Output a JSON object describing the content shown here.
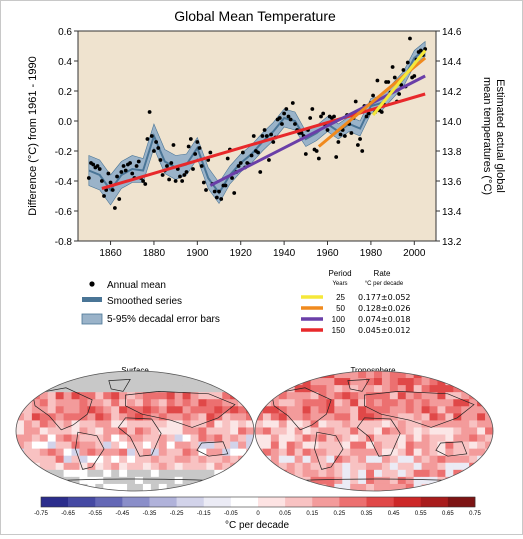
{
  "chart_data": [
    {
      "type": "scatter",
      "title": "Global Mean Temperature",
      "ylabel": "Difference (°C) from 1961 - 1990",
      "y2label_line1": "Estimated actual global",
      "y2label_line2": "mean temperatures (°C)",
      "xlim": [
        1845,
        2010
      ],
      "ylim": [
        -0.8,
        0.6
      ],
      "y2lim": [
        13.2,
        14.6
      ],
      "xticks": [
        "1860",
        "1880",
        "1900",
        "1920",
        "1940",
        "1960",
        "1980",
        "2000"
      ],
      "yticks": [
        "0.6",
        "0.4",
        "0.2",
        "0.0",
        "-0.2",
        "-0.4",
        "-0.6",
        "-0.8"
      ],
      "y2ticks": [
        "14.6",
        "14.4",
        "14.2",
        "14.0",
        "13.8",
        "13.6",
        "13.4",
        "13.2"
      ],
      "annual_mean": {
        "x": [
          1850,
          1851,
          1852,
          1853,
          1854,
          1855,
          1856,
          1857,
          1858,
          1859,
          1860,
          1861,
          1862,
          1863,
          1864,
          1865,
          1866,
          1867,
          1868,
          1869,
          1870,
          1871,
          1872,
          1873,
          1874,
          1875,
          1876,
          1877,
          1878,
          1879,
          1880,
          1881,
          1882,
          1883,
          1884,
          1885,
          1886,
          1887,
          1888,
          1889,
          1890,
          1891,
          1892,
          1893,
          1894,
          1895,
          1896,
          1897,
          1898,
          1899,
          1900,
          1901,
          1902,
          1903,
          1904,
          1905,
          1906,
          1907,
          1908,
          1909,
          1910,
          1911,
          1912,
          1913,
          1914,
          1915,
          1916,
          1917,
          1918,
          1919,
          1920,
          1921,
          1922,
          1923,
          1924,
          1925,
          1926,
          1927,
          1928,
          1929,
          1930,
          1931,
          1932,
          1933,
          1934,
          1935,
          1936,
          1937,
          1938,
          1939,
          1940,
          1941,
          1942,
          1943,
          1944,
          1945,
          1946,
          1947,
          1948,
          1949,
          1950,
          1951,
          1952,
          1953,
          1954,
          1955,
          1956,
          1957,
          1958,
          1959,
          1960,
          1961,
          1962,
          1963,
          1964,
          1965,
          1966,
          1967,
          1968,
          1969,
          1970,
          1971,
          1972,
          1973,
          1974,
          1975,
          1976,
          1977,
          1978,
          1979,
          1980,
          1981,
          1982,
          1983,
          1984,
          1985,
          1986,
          1987,
          1988,
          1989,
          1990,
          1991,
          1992,
          1993,
          1994,
          1995,
          1996,
          1997,
          1998,
          1999,
          2000,
          2001,
          2002,
          2003,
          2004,
          2005
        ],
        "y": [
          -0.38,
          -0.28,
          -0.29,
          -0.31,
          -0.3,
          -0.32,
          -0.4,
          -0.5,
          -0.46,
          -0.35,
          -0.41,
          -0.46,
          -0.58,
          -0.37,
          -0.52,
          -0.34,
          -0.3,
          -0.33,
          -0.29,
          -0.28,
          -0.35,
          -0.38,
          -0.3,
          -0.27,
          -0.38,
          -0.4,
          -0.42,
          -0.12,
          0.06,
          -0.1,
          -0.2,
          -0.14,
          -0.18,
          -0.26,
          -0.36,
          -0.33,
          -0.3,
          -0.39,
          -0.28,
          -0.16,
          -0.4,
          -0.32,
          -0.37,
          -0.4,
          -0.36,
          -0.34,
          -0.17,
          -0.12,
          -0.32,
          -0.22,
          -0.14,
          -0.18,
          -0.3,
          -0.41,
          -0.46,
          -0.26,
          -0.21,
          -0.42,
          -0.47,
          -0.51,
          -0.47,
          -0.52,
          -0.43,
          -0.43,
          -0.25,
          -0.19,
          -0.38,
          -0.48,
          -0.34,
          -0.3,
          -0.28,
          -0.21,
          -0.31,
          -0.28,
          -0.29,
          -0.23,
          -0.1,
          -0.2,
          -0.21,
          -0.34,
          -0.1,
          -0.06,
          -0.1,
          -0.26,
          -0.09,
          -0.14,
          -0.11,
          0.01,
          0.02,
          -0.02,
          0.05,
          0.08,
          0.03,
          0.01,
          0.12,
          -0.02,
          -0.06,
          -0.08,
          -0.08,
          -0.1,
          -0.22,
          -0.06,
          0.02,
          0.08,
          -0.19,
          -0.2,
          -0.25,
          0.03,
          0.05,
          -0.03,
          -0.06,
          0.03,
          0.02,
          0.03,
          -0.24,
          -0.14,
          -0.09,
          -0.06,
          -0.1,
          0.04,
          -0.02,
          -0.08,
          0.02,
          0.13,
          -0.16,
          -0.12,
          -0.2,
          0.1,
          0.03,
          0.05,
          0.12,
          0.17,
          0.06,
          0.27,
          0.07,
          0.06,
          0.11,
          0.26,
          0.26,
          0.19,
          0.36,
          0.29,
          0.13,
          0.18,
          0.24,
          0.34,
          0.23,
          0.39,
          0.55,
          0.29,
          0.3,
          0.41,
          0.46,
          0.47,
          0.44,
          0.48
        ]
      },
      "smoothed_series": {
        "x": [
          1850,
          1855,
          1860,
          1865,
          1870,
          1875,
          1880,
          1885,
          1890,
          1895,
          1900,
          1905,
          1910,
          1915,
          1920,
          1925,
          1930,
          1935,
          1940,
          1945,
          1950,
          1955,
          1960,
          1965,
          1970,
          1975,
          1980,
          1985,
          1990,
          1995,
          2000,
          2005
        ],
        "y": [
          -0.33,
          -0.36,
          -0.46,
          -0.36,
          -0.32,
          -0.33,
          -0.1,
          -0.27,
          -0.31,
          -0.29,
          -0.18,
          -0.38,
          -0.48,
          -0.36,
          -0.28,
          -0.22,
          -0.14,
          -0.07,
          0.02,
          0.0,
          -0.12,
          -0.08,
          -0.02,
          -0.07,
          -0.02,
          -0.05,
          0.1,
          0.12,
          0.2,
          0.28,
          0.42,
          0.48
        ]
      },
      "error_band_half_width": [
        0.1,
        0.1,
        0.1,
        0.09,
        0.09,
        0.08,
        0.08,
        0.08,
        0.08,
        0.07,
        0.07,
        0.07,
        0.07,
        0.06,
        0.06,
        0.06,
        0.06,
        0.06,
        0.06,
        0.06,
        0.05,
        0.05,
        0.05,
        0.05,
        0.05,
        0.05,
        0.05,
        0.05,
        0.05,
        0.05,
        0.05,
        0.05
      ],
      "trends": [
        {
          "period": "25",
          "rate": "0.177±0.052",
          "color": "#f5e83a",
          "x": [
            1981,
            2005
          ],
          "y": [
            0.04,
            0.47
          ]
        },
        {
          "period": "50",
          "rate": "0.128±0.026",
          "color": "#f08a1e",
          "x": [
            1956,
            2005
          ],
          "y": [
            -0.17,
            0.42
          ]
        },
        {
          "period": "100",
          "rate": "0.074±0.018",
          "color": "#6a3fa8",
          "x": [
            1906,
            2005
          ],
          "y": [
            -0.43,
            0.3
          ]
        },
        {
          "period": "150",
          "rate": "0.045±0.012",
          "color": "#e8292b",
          "x": [
            1856,
            2005
          ],
          "y": [
            -0.45,
            0.18
          ]
        }
      ],
      "colors": {
        "background": "#efe3cf",
        "band": "#9ab3c9",
        "smooth": "#4a7596",
        "points": "#000000"
      }
    },
    {
      "type": "heatmap",
      "maps": [
        {
          "title": "Surface"
        },
        {
          "title": "Troposphere"
        }
      ],
      "colorbar": {
        "label": "°C per decade",
        "ticks": [
          "-0.75",
          "-0.65",
          "-0.55",
          "-0.45",
          "-0.35",
          "-0.25",
          "-0.15",
          "-0.05",
          "0",
          "0.05",
          "0.15",
          "0.25",
          "0.35",
          "0.45",
          "0.55",
          "0.65",
          "0.75"
        ],
        "colors": [
          "#2b2d8c",
          "#4549a3",
          "#6468b6",
          "#8a8ec9",
          "#b0b2da",
          "#d2d3ea",
          "#ebebf5",
          "#ffffff",
          "#fde3e3",
          "#f8c2c2",
          "#f39b9b",
          "#ec7070",
          "#e04848",
          "#cc2828",
          "#a81c1c",
          "#7d1414"
        ]
      }
    }
  ],
  "legend": {
    "annual_mean": "Annual mean",
    "smoothed": "Smoothed series",
    "error_bars": "5-95% decadal error bars",
    "period_header": "Period",
    "period_units": "Years",
    "rate_header": "Rate",
    "rate_units": "°C  per decade"
  }
}
